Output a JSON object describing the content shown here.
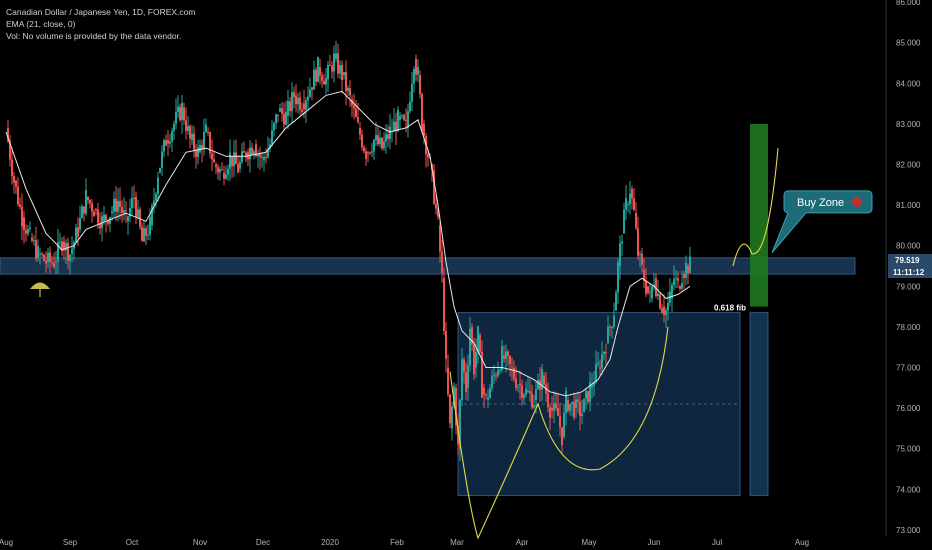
{
  "legend": {
    "symbol": "Canadian Dollar / Japanese Yen, 1D, FOREX.com",
    "ema": "EMA (21, close, 0)",
    "vol": "Vol: No volume is provided by the data vendor."
  },
  "annotations": {
    "buy_zone": "Buy Zone",
    "fib": "0.618 fib"
  },
  "colors": {
    "up": "#26a69a",
    "down": "#ef5350",
    "ema": "#e8e8e8",
    "zone": "#1d3b5c",
    "green_box": "#1f7a1f",
    "yellow_path": "#e5d84a",
    "callout": "#1e6b78",
    "price_badge": "#2a4a6a"
  },
  "chart_data": {
    "type": "candlestick",
    "title": "Canadian Dollar / Japanese Yen, 1D, FOREX.com",
    "ylim": [
      72.8,
      86.1
    ],
    "y_ticks": [
      "86.000",
      "85.000",
      "84.000",
      "83.000",
      "82.000",
      "81.000",
      "80.000",
      "79.000",
      "78.000",
      "77.000",
      "76.000",
      "75.000",
      "74.000",
      "73.000"
    ],
    "x_ticks": [
      {
        "label": "Aug",
        "x": 0
      },
      {
        "label": "Sep",
        "x": 32
      },
      {
        "label": "Oct",
        "x": 62
      },
      {
        "label": "Nov",
        "x": 93
      },
      {
        "label": "Dec",
        "x": 123
      },
      {
        "label": "2020",
        "x": 154
      },
      {
        "label": "Feb",
        "x": 185
      },
      {
        "label": "Mar",
        "x": 214
      },
      {
        "label": "Apr",
        "x": 245
      },
      {
        "label": "May",
        "x": 275
      },
      {
        "label": "Jun",
        "x": 306
      },
      {
        "label": "Jul",
        "x": 336
      },
      {
        "label": "Aug",
        "x": 367
      }
    ],
    "x_range": [
      0,
      404
    ],
    "last_price": "79.519",
    "countdown": "11:11:12",
    "fib_level": 78.35,
    "support_zone": [
      79.3,
      79.7
    ],
    "close_path": [
      [
        0,
        82.9
      ],
      [
        4,
        81.6
      ],
      [
        8,
        80.7
      ],
      [
        12,
        80.2
      ],
      [
        16,
        79.8
      ],
      [
        20,
        79.6
      ],
      [
        24,
        79.6
      ],
      [
        28,
        80.1
      ],
      [
        32,
        79.8
      ],
      [
        36,
        80.4
      ],
      [
        40,
        81.2
      ],
      [
        44,
        80.9
      ],
      [
        48,
        80.6
      ],
      [
        52,
        80.8
      ],
      [
        56,
        81.1
      ],
      [
        60,
        80.6
      ],
      [
        64,
        81.2
      ],
      [
        68,
        80.1
      ],
      [
        72,
        80.5
      ],
      [
        76,
        81.8
      ],
      [
        80,
        82.6
      ],
      [
        84,
        83.0
      ],
      [
        88,
        83.4
      ],
      [
        92,
        82.6
      ],
      [
        96,
        82.3
      ],
      [
        100,
        82.8
      ],
      [
        104,
        82.0
      ],
      [
        108,
        81.8
      ],
      [
        112,
        82.2
      ],
      [
        116,
        81.9
      ],
      [
        120,
        82.3
      ],
      [
        124,
        82.5
      ],
      [
        128,
        82.1
      ],
      [
        132,
        82.5
      ],
      [
        136,
        83.3
      ],
      [
        140,
        83.2
      ],
      [
        144,
        83.7
      ],
      [
        148,
        83.5
      ],
      [
        152,
        83.9
      ],
      [
        156,
        84.4
      ],
      [
        160,
        84.1
      ],
      [
        164,
        84.6
      ],
      [
        168,
        84.2
      ],
      [
        172,
        83.6
      ],
      [
        176,
        82.9
      ],
      [
        180,
        82.3
      ],
      [
        184,
        82.6
      ],
      [
        188,
        82.4
      ],
      [
        192,
        82.8
      ],
      [
        196,
        83.1
      ],
      [
        200,
        82.9
      ],
      [
        204,
        84.6
      ],
      [
        206,
        84.2
      ],
      [
        208,
        83.0
      ],
      [
        212,
        82.0
      ],
      [
        216,
        80.5
      ],
      [
        218,
        79.2
      ],
      [
        220,
        77.0
      ],
      [
        222,
        75.5
      ],
      [
        224,
        76.5
      ],
      [
        226,
        75.0
      ],
      [
        228,
        77.2
      ],
      [
        230,
        76.5
      ],
      [
        232,
        78.0
      ],
      [
        234,
        77.0
      ],
      [
        236,
        77.8
      ],
      [
        238,
        76.5
      ],
      [
        240,
        76.2
      ],
      [
        244,
        76.8
      ],
      [
        248,
        77.3
      ],
      [
        252,
        77.0
      ],
      [
        256,
        76.6
      ],
      [
        260,
        76.4
      ],
      [
        264,
        76.2
      ],
      [
        268,
        76.8
      ],
      [
        272,
        76.0
      ],
      [
        276,
        75.8
      ],
      [
        278,
        75.3
      ],
      [
        280,
        76.2
      ],
      [
        284,
        76.0
      ],
      [
        288,
        75.9
      ],
      [
        292,
        76.5
      ],
      [
        296,
        77.0
      ],
      [
        300,
        77.6
      ],
      [
        302,
        78.0
      ],
      [
        304,
        78.4
      ],
      [
        306,
        79.5
      ],
      [
        308,
        80.3
      ],
      [
        310,
        81.0
      ],
      [
        312,
        81.4
      ],
      [
        314,
        80.8
      ],
      [
        316,
        79.8
      ],
      [
        318,
        79.4
      ],
      [
        320,
        79.0
      ],
      [
        322,
        78.7
      ],
      [
        324,
        79.2
      ],
      [
        326,
        78.8
      ],
      [
        328,
        78.5
      ],
      [
        330,
        78.4
      ],
      [
        332,
        78.7
      ],
      [
        334,
        79.2
      ],
      [
        336,
        79.0
      ],
      [
        338,
        79.3
      ],
      [
        340,
        79.5
      ],
      [
        342,
        79.519
      ]
    ],
    "ema_path": [
      [
        0,
        82.8
      ],
      [
        10,
        81.4
      ],
      [
        20,
        80.3
      ],
      [
        28,
        79.9
      ],
      [
        34,
        80.0
      ],
      [
        40,
        80.4
      ],
      [
        50,
        80.6
      ],
      [
        60,
        80.8
      ],
      [
        70,
        80.6
      ],
      [
        80,
        81.5
      ],
      [
        90,
        82.3
      ],
      [
        100,
        82.4
      ],
      [
        110,
        82.2
      ],
      [
        120,
        82.2
      ],
      [
        130,
        82.3
      ],
      [
        140,
        82.9
      ],
      [
        150,
        83.3
      ],
      [
        160,
        83.7
      ],
      [
        168,
        83.8
      ],
      [
        176,
        83.4
      ],
      [
        184,
        83.0
      ],
      [
        192,
        82.8
      ],
      [
        200,
        82.9
      ],
      [
        206,
        83.1
      ],
      [
        212,
        82.2
      ],
      [
        216,
        81.0
      ],
      [
        220,
        79.6
      ],
      [
        224,
        78.5
      ],
      [
        228,
        77.9
      ],
      [
        234,
        77.6
      ],
      [
        240,
        77.0
      ],
      [
        248,
        77.0
      ],
      [
        256,
        76.9
      ],
      [
        264,
        76.7
      ],
      [
        272,
        76.4
      ],
      [
        280,
        76.3
      ],
      [
        288,
        76.4
      ],
      [
        296,
        76.7
      ],
      [
        302,
        77.2
      ],
      [
        306,
        78.0
      ],
      [
        312,
        79.0
      ],
      [
        318,
        79.2
      ],
      [
        324,
        79.0
      ],
      [
        330,
        78.7
      ],
      [
        336,
        78.8
      ],
      [
        342,
        79.0
      ]
    ]
  }
}
